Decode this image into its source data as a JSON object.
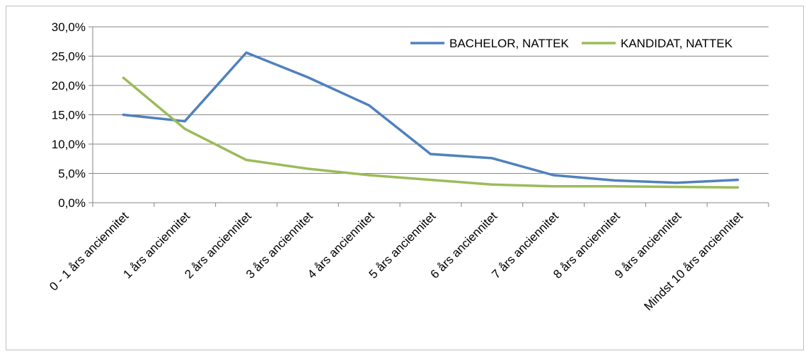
{
  "chart_data": {
    "type": "line",
    "title": "",
    "xlabel": "",
    "ylabel": "",
    "categories": [
      "0 - 1 års anciennitet",
      "1 års anciennitet",
      "2 års anciennitet",
      "3 års anciennitet",
      "4 års anciennitet",
      "5 års anciennitet",
      "6 års anciennitet",
      "7 års anciennitet",
      "8 års anciennitet",
      "9 års anciennitet",
      "Mindst 10 års anciennitet"
    ],
    "series": [
      {
        "name": "BACHELOR, NATTEK",
        "color": "#4f81bd",
        "values": [
          15.0,
          13.9,
          25.6,
          21.4,
          16.6,
          8.3,
          7.6,
          4.7,
          3.8,
          3.4,
          3.9
        ]
      },
      {
        "name": "KANDIDAT, NATTEK",
        "color": "#9bbb59",
        "values": [
          21.3,
          12.6,
          7.3,
          5.8,
          4.7,
          3.9,
          3.1,
          2.8,
          2.8,
          2.7,
          2.6
        ]
      }
    ],
    "ylim": [
      0,
      30
    ],
    "yticks": [
      0,
      5,
      10,
      15,
      20,
      25,
      30
    ],
    "ytick_labels": [
      "0,0%",
      "5,0%",
      "10,0%",
      "15,0%",
      "20,0%",
      "25,0%",
      "30,0%"
    ],
    "grid": true,
    "legend_position": "top-right"
  }
}
